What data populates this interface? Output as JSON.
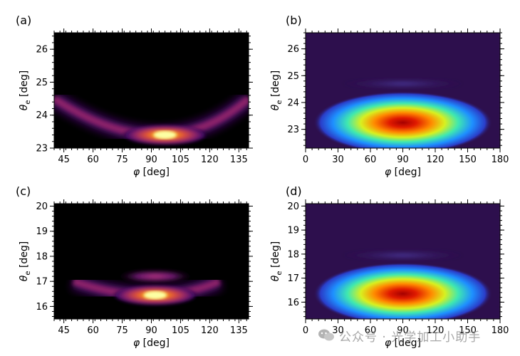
{
  "chart_data": [
    {
      "panel": "(a)",
      "type": "heatmap",
      "description_colormap": "inferno",
      "xlabel": "φ [deg]",
      "ylabel": "θe [deg]",
      "xlim": [
        40,
        140
      ],
      "ylim": [
        23,
        26.5
      ],
      "xticks": [
        45,
        60,
        75,
        90,
        105,
        120,
        135
      ],
      "yticks": [
        23,
        24,
        25,
        26
      ],
      "features": [
        {
          "kind": "arc",
          "x_range": [
            40,
            140
          ],
          "y_center": 23.4,
          "y_at_edges": 24.5,
          "peak_x": 97,
          "peak_y": 23.4
        }
      ]
    },
    {
      "panel": "(b)",
      "type": "heatmap",
      "description_colormap": "jet",
      "xlabel": "φ [deg]",
      "ylabel": "θe [deg]",
      "xlim": [
        0,
        180
      ],
      "ylim": [
        22.3,
        26.6
      ],
      "xticks": [
        0,
        30,
        60,
        90,
        120,
        150,
        180
      ],
      "yticks": [
        23,
        24,
        25,
        26
      ],
      "features": [
        {
          "kind": "gaussian",
          "center": [
            90,
            23.25
          ],
          "intensity": 1.0
        },
        {
          "kind": "band",
          "center": [
            90,
            24.7
          ],
          "intensity": 0.12
        }
      ]
    },
    {
      "panel": "(c)",
      "type": "heatmap",
      "description_colormap": "inferno",
      "xlabel": "φ [deg]",
      "ylabel": "θe [deg]",
      "xlim": [
        40,
        140
      ],
      "ylim": [
        15.5,
        20.1
      ],
      "xticks": [
        45,
        60,
        75,
        90,
        105,
        120,
        135
      ],
      "yticks": [
        16,
        17,
        18,
        19,
        20
      ],
      "features": [
        {
          "kind": "arc",
          "x_range": [
            50,
            125
          ],
          "y_center": 16.45,
          "y_at_edges": 17.0,
          "peak_x": 92,
          "peak_y": 16.45
        },
        {
          "kind": "band",
          "center": [
            92,
            17.2
          ],
          "intensity": 0.3
        }
      ]
    },
    {
      "panel": "(d)",
      "type": "heatmap",
      "description_colormap": "jet",
      "xlabel": "φ [deg]",
      "ylabel": "θe [deg]",
      "xlim": [
        0,
        180
      ],
      "ylim": [
        15.3,
        20.1
      ],
      "xticks": [
        0,
        30,
        60,
        90,
        120,
        150,
        180
      ],
      "yticks": [
        16,
        17,
        18,
        19,
        20
      ],
      "features": [
        {
          "kind": "gaussian",
          "center": [
            90,
            16.35
          ],
          "intensity": 1.0
        },
        {
          "kind": "band",
          "center": [
            90,
            17.95
          ],
          "intensity": 0.12
        }
      ]
    }
  ],
  "colors": {
    "jet_background": "#2d0f4d",
    "inferno_background": "#000000"
  },
  "watermark": {
    "icon": "wechat-icon",
    "text": "公众号 · 光学加工小助手"
  }
}
